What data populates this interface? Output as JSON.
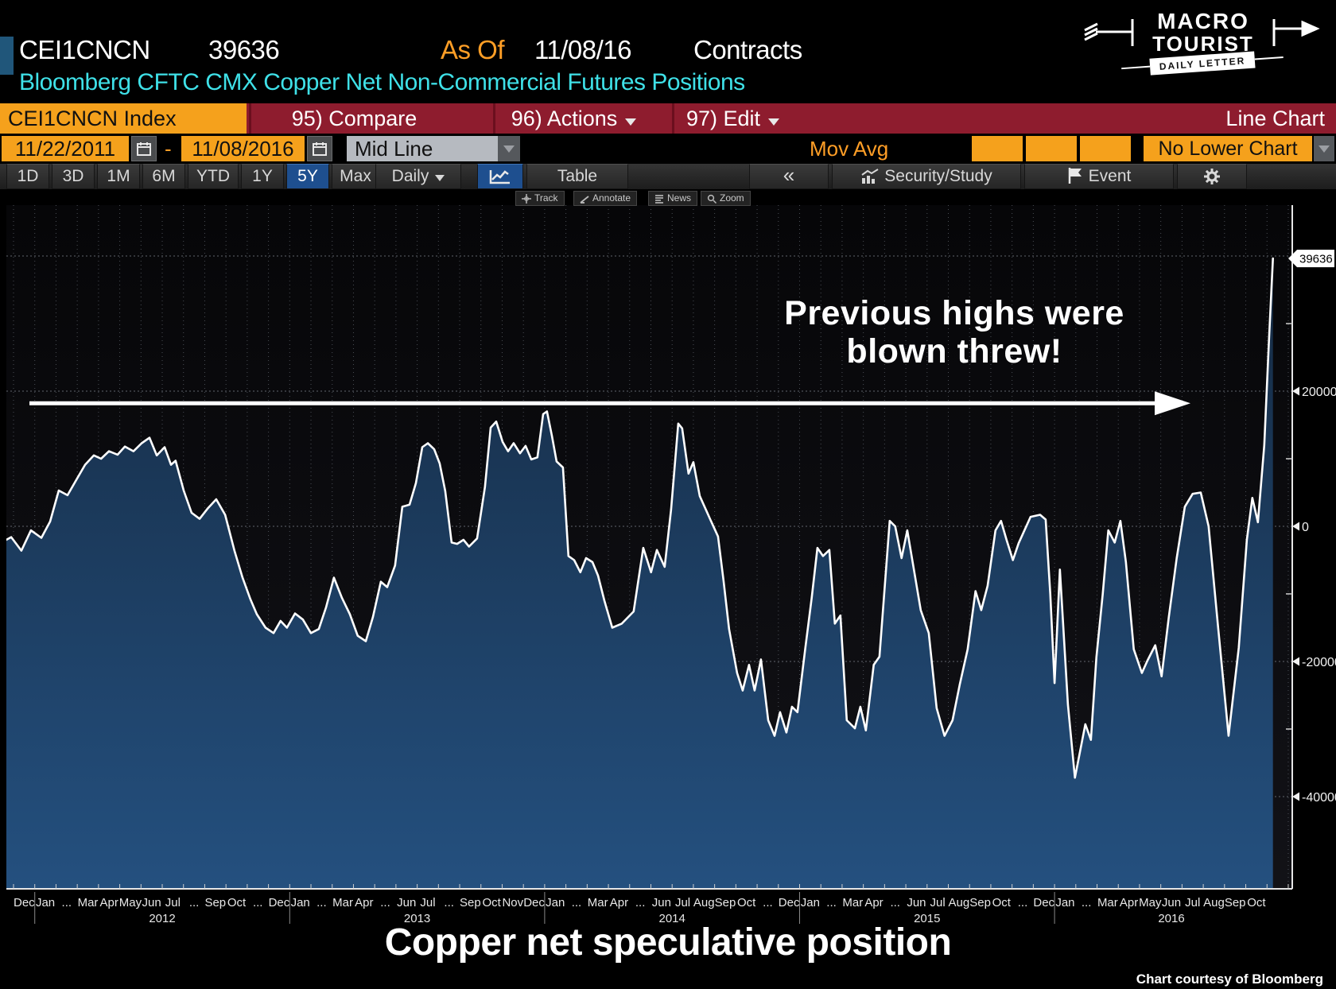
{
  "header": {
    "ticker": "CEI1CNCN",
    "value": "39636",
    "as_of_label": "As Of",
    "as_of_date": "11/08/16",
    "unit": "Contracts",
    "subtitle": "Bloomberg CFTC CMX Copper Net Non-Commercial Futures Positions"
  },
  "logo": {
    "word1": "MACRO",
    "word2": "TOURIST",
    "banner": "DAILY LETTER"
  },
  "ribbon": {
    "index_tab": "CEI1CNCN Index",
    "compare": "95) Compare",
    "actions": "96) Actions",
    "edit": "97) Edit",
    "chart_type": "Line Chart"
  },
  "controls": {
    "date_from": "11/22/2011",
    "separator": "-",
    "date_to": "11/08/2016",
    "line_style": "Mid Line",
    "mov_avg": "Mov Avg",
    "lower_chart": "No Lower Chart"
  },
  "period_tabs": {
    "items": [
      "1D",
      "3D",
      "1M",
      "6M",
      "YTD",
      "1Y",
      "5Y",
      "Max"
    ],
    "selected": "5Y",
    "frequency": "Daily",
    "table": "Table"
  },
  "toolbar_right": {
    "collapse": "«",
    "security_study": "Security/Study",
    "event": "Event"
  },
  "chart_tools": {
    "items": [
      {
        "icon": "track-icon",
        "label": "Track"
      },
      {
        "icon": "annotate-icon",
        "label": "Annotate"
      },
      {
        "icon": "news-icon",
        "label": "News"
      },
      {
        "icon": "zoom-icon",
        "label": "Zoom"
      }
    ]
  },
  "annotation": {
    "line1": "Previous highs were",
    "line2": "blown threw!"
  },
  "footer": {
    "title": "Copper net speculative position",
    "credit": "Chart courtesy of Bloomberg"
  },
  "chart_data": {
    "type": "area",
    "title": "Bloomberg CFTC CMX Copper Net Non-Commercial Futures Positions",
    "x_start": "2011-11-22",
    "x_end": "2016-11-08",
    "last_value": 39636,
    "last_value_badge": "39636",
    "grid": "dashed",
    "legend_position": "none",
    "colors": {
      "line": "#ffffff",
      "fill_top": "#152a42",
      "fill_bottom": "#24507f",
      "accent_amber": "#f5a11c",
      "ribbon_red": "#8e1c2e",
      "title_cyan": "#3fe1e8",
      "selected_blue": "#1e4f8f"
    },
    "y_axis": {
      "units": "contracts",
      "gridline_values": [
        40000,
        20000,
        0,
        -20000,
        -40000
      ],
      "tick_labels": [
        {
          "v": 20000,
          "label": "20000"
        },
        {
          "v": 0,
          "label": "0"
        },
        {
          "v": -20000,
          "label": "-20000"
        },
        {
          "v": -40000,
          "label": "-40000"
        }
      ],
      "minor_ticks": [
        30000,
        10000,
        -10000,
        -30000
      ]
    },
    "x_axis": {
      "month_labels": [
        {
          "m": 0,
          "t": "Dec"
        },
        {
          "m": 1,
          "t": "Jan"
        },
        {
          "m": 2,
          "t": "..."
        },
        {
          "m": 3,
          "t": "Mar"
        },
        {
          "m": 4,
          "t": "Apr"
        },
        {
          "m": 5,
          "t": "May"
        },
        {
          "m": 6,
          "t": "Jun"
        },
        {
          "m": 7,
          "t": "Jul"
        },
        {
          "m": 8,
          "t": "..."
        },
        {
          "m": 9,
          "t": "Sep"
        },
        {
          "m": 10,
          "t": "Oct"
        },
        {
          "m": 11,
          "t": "..."
        },
        {
          "m": 12,
          "t": "Dec"
        },
        {
          "m": 13,
          "t": "Jan"
        },
        {
          "m": 14,
          "t": "..."
        },
        {
          "m": 15,
          "t": "Mar"
        },
        {
          "m": 16,
          "t": "Apr"
        },
        {
          "m": 17,
          "t": "..."
        },
        {
          "m": 18,
          "t": "Jun"
        },
        {
          "m": 19,
          "t": "Jul"
        },
        {
          "m": 20,
          "t": "..."
        },
        {
          "m": 21,
          "t": "Sep"
        },
        {
          "m": 22,
          "t": "Oct"
        },
        {
          "m": 23,
          "t": "Nov"
        },
        {
          "m": 24,
          "t": "Dec"
        },
        {
          "m": 25,
          "t": "Jan"
        },
        {
          "m": 26,
          "t": "..."
        },
        {
          "m": 27,
          "t": "Mar"
        },
        {
          "m": 28,
          "t": "Apr"
        },
        {
          "m": 29,
          "t": "..."
        },
        {
          "m": 30,
          "t": "Jun"
        },
        {
          "m": 31,
          "t": "Jul"
        },
        {
          "m": 32,
          "t": "Aug"
        },
        {
          "m": 33,
          "t": "Sep"
        },
        {
          "m": 34,
          "t": "Oct"
        },
        {
          "m": 35,
          "t": "..."
        },
        {
          "m": 36,
          "t": "Dec"
        },
        {
          "m": 37,
          "t": "Jan"
        },
        {
          "m": 38,
          "t": "..."
        },
        {
          "m": 39,
          "t": "Mar"
        },
        {
          "m": 40,
          "t": "Apr"
        },
        {
          "m": 41,
          "t": "..."
        },
        {
          "m": 42,
          "t": "Jun"
        },
        {
          "m": 43,
          "t": "Jul"
        },
        {
          "m": 44,
          "t": "Aug"
        },
        {
          "m": 45,
          "t": "Sep"
        },
        {
          "m": 46,
          "t": "Oct"
        },
        {
          "m": 47,
          "t": "..."
        },
        {
          "m": 48,
          "t": "Dec"
        },
        {
          "m": 49,
          "t": "Jan"
        },
        {
          "m": 50,
          "t": "..."
        },
        {
          "m": 51,
          "t": "Mar"
        },
        {
          "m": 52,
          "t": "Apr"
        },
        {
          "m": 53,
          "t": "May"
        },
        {
          "m": 54,
          "t": "Jun"
        },
        {
          "m": 55,
          "t": "Jul"
        },
        {
          "m": 56,
          "t": "Aug"
        },
        {
          "m": 57,
          "t": "Sep"
        },
        {
          "m": 58,
          "t": "Oct"
        }
      ],
      "year_labels": [
        {
          "m": 7,
          "t": "2012"
        },
        {
          "m": 19,
          "t": "2013"
        },
        {
          "m": 31,
          "t": "2014"
        },
        {
          "m": 43,
          "t": "2015"
        },
        {
          "m": 54.5,
          "t": "2016"
        }
      ],
      "year_separators_m": [
        1,
        13,
        25,
        37,
        49
      ]
    },
    "annotation_arrow": {
      "value_level": 18200,
      "direction": "right"
    },
    "series": [
      {
        "name": "CMX copper net non-commercial futures position (contracts)",
        "points": [
          [
            -0.34,
            -2000
          ],
          [
            -0.11,
            -1600
          ],
          [
            0.37,
            -3600
          ],
          [
            0.82,
            -600
          ],
          [
            1.31,
            -1700
          ],
          [
            1.72,
            700
          ],
          [
            2.13,
            5300
          ],
          [
            2.54,
            4600
          ],
          [
            2.96,
            6900
          ],
          [
            3.37,
            9100
          ],
          [
            3.78,
            10500
          ],
          [
            4.12,
            10000
          ],
          [
            4.49,
            11100
          ],
          [
            4.9,
            10600
          ],
          [
            5.24,
            11800
          ],
          [
            5.65,
            11100
          ],
          [
            6.03,
            12300
          ],
          [
            6.4,
            13100
          ],
          [
            6.74,
            10500
          ],
          [
            7.11,
            11700
          ],
          [
            7.41,
            9100
          ],
          [
            7.63,
            9700
          ],
          [
            8.01,
            5300
          ],
          [
            8.38,
            2000
          ],
          [
            8.76,
            1100
          ],
          [
            9.13,
            2600
          ],
          [
            9.54,
            4000
          ],
          [
            9.96,
            1700
          ],
          [
            10.4,
            -3600
          ],
          [
            10.78,
            -7600
          ],
          [
            11.15,
            -10800
          ],
          [
            11.45,
            -13000
          ],
          [
            11.86,
            -15000
          ],
          [
            12.24,
            -15800
          ],
          [
            12.57,
            -14000
          ],
          [
            12.87,
            -15000
          ],
          [
            13.25,
            -12900
          ],
          [
            13.62,
            -13800
          ],
          [
            14.0,
            -15800
          ],
          [
            14.37,
            -15200
          ],
          [
            14.71,
            -12000
          ],
          [
            15.08,
            -7600
          ],
          [
            15.46,
            -10600
          ],
          [
            15.83,
            -13000
          ],
          [
            16.2,
            -16200
          ],
          [
            16.58,
            -17000
          ],
          [
            16.92,
            -13400
          ],
          [
            17.29,
            -8200
          ],
          [
            17.59,
            -9000
          ],
          [
            17.96,
            -5800
          ],
          [
            18.3,
            2900
          ],
          [
            18.64,
            3200
          ],
          [
            18.94,
            6400
          ],
          [
            19.24,
            11700
          ],
          [
            19.5,
            12300
          ],
          [
            19.8,
            11400
          ],
          [
            20.06,
            9300
          ],
          [
            20.32,
            5200
          ],
          [
            20.62,
            -2400
          ],
          [
            20.88,
            -2600
          ],
          [
            21.18,
            -2000
          ],
          [
            21.44,
            -3000
          ],
          [
            21.82,
            -1800
          ],
          [
            22.19,
            5800
          ],
          [
            22.46,
            14600
          ],
          [
            22.72,
            15500
          ],
          [
            23.02,
            12500
          ],
          [
            23.28,
            11100
          ],
          [
            23.54,
            12300
          ],
          [
            23.84,
            10800
          ],
          [
            24.1,
            11900
          ],
          [
            24.37,
            9900
          ],
          [
            24.66,
            10200
          ],
          [
            24.93,
            16600
          ],
          [
            25.11,
            17000
          ],
          [
            25.34,
            13400
          ],
          [
            25.56,
            9600
          ],
          [
            25.86,
            8700
          ],
          [
            26.12,
            -4400
          ],
          [
            26.39,
            -5000
          ],
          [
            26.68,
            -6800
          ],
          [
            26.95,
            -4700
          ],
          [
            27.25,
            -5300
          ],
          [
            27.51,
            -7300
          ],
          [
            27.81,
            -11000
          ],
          [
            28.18,
            -15000
          ],
          [
            28.63,
            -14400
          ],
          [
            29.19,
            -12600
          ],
          [
            29.64,
            -3200
          ],
          [
            30.01,
            -6800
          ],
          [
            30.28,
            -3500
          ],
          [
            30.65,
            -6000
          ],
          [
            30.95,
            2500
          ],
          [
            31.29,
            15200
          ],
          [
            31.47,
            14500
          ],
          [
            31.77,
            7800
          ],
          [
            32.0,
            9500
          ],
          [
            32.3,
            4500
          ],
          [
            32.78,
            1100
          ],
          [
            33.16,
            -1500
          ],
          [
            33.42,
            -8000
          ],
          [
            33.68,
            -15200
          ],
          [
            34.06,
            -21700
          ],
          [
            34.32,
            -24300
          ],
          [
            34.62,
            -20500
          ],
          [
            34.88,
            -24300
          ],
          [
            35.18,
            -19700
          ],
          [
            35.52,
            -28700
          ],
          [
            35.82,
            -31000
          ],
          [
            36.08,
            -27500
          ],
          [
            36.38,
            -30500
          ],
          [
            36.64,
            -26700
          ],
          [
            36.9,
            -27500
          ],
          [
            37.27,
            -18000
          ],
          [
            37.57,
            -10600
          ],
          [
            37.84,
            -3200
          ],
          [
            38.1,
            -4400
          ],
          [
            38.4,
            -3500
          ],
          [
            38.66,
            -14400
          ],
          [
            38.92,
            -13200
          ],
          [
            39.22,
            -28700
          ],
          [
            39.6,
            -29900
          ],
          [
            39.86,
            -26700
          ],
          [
            40.12,
            -30200
          ],
          [
            40.49,
            -20500
          ],
          [
            40.76,
            -19300
          ],
          [
            41.24,
            800
          ],
          [
            41.5,
            0
          ],
          [
            41.8,
            -4700
          ],
          [
            42.07,
            -600
          ],
          [
            42.7,
            -12400
          ],
          [
            43.08,
            -15800
          ],
          [
            43.45,
            -26900
          ],
          [
            43.82,
            -31000
          ],
          [
            44.2,
            -28700
          ],
          [
            44.54,
            -23400
          ],
          [
            44.91,
            -18200
          ],
          [
            45.28,
            -9600
          ],
          [
            45.55,
            -12400
          ],
          [
            45.85,
            -8800
          ],
          [
            46.22,
            -600
          ],
          [
            46.48,
            800
          ],
          [
            46.74,
            -2000
          ],
          [
            47.04,
            -5000
          ],
          [
            47.31,
            -2500
          ],
          [
            47.87,
            1400
          ],
          [
            48.32,
            1700
          ],
          [
            48.58,
            1000
          ],
          [
            48.8,
            -10000
          ],
          [
            49.0,
            -23200
          ],
          [
            49.25,
            -6400
          ],
          [
            49.63,
            -26400
          ],
          [
            49.96,
            -37200
          ],
          [
            50.45,
            -29300
          ],
          [
            50.71,
            -31600
          ],
          [
            50.97,
            -19400
          ],
          [
            51.27,
            -10000
          ],
          [
            51.53,
            -600
          ],
          [
            51.83,
            -2400
          ],
          [
            52.1,
            800
          ],
          [
            52.36,
            -5300
          ],
          [
            52.73,
            -18200
          ],
          [
            53.11,
            -21700
          ],
          [
            53.37,
            -19900
          ],
          [
            53.74,
            -17600
          ],
          [
            54.04,
            -22200
          ],
          [
            54.38,
            -13400
          ],
          [
            54.75,
            -4700
          ],
          [
            55.13,
            2900
          ],
          [
            55.5,
            4800
          ],
          [
            55.88,
            5000
          ],
          [
            56.25,
            0
          ],
          [
            56.7,
            -15000
          ],
          [
            57.19,
            -31000
          ],
          [
            57.67,
            -18000
          ],
          [
            58.05,
            -2000
          ],
          [
            58.31,
            4200
          ],
          [
            58.57,
            600
          ],
          [
            58.87,
            12000
          ],
          [
            59.1,
            28000
          ],
          [
            59.28,
            39636
          ]
        ]
      }
    ]
  }
}
